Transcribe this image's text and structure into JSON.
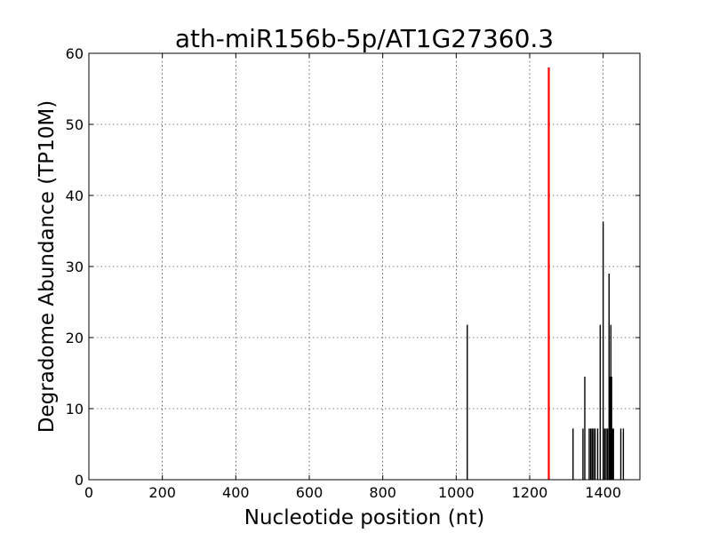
{
  "chart_data": {
    "type": "bar",
    "title": "ath-miR156b-5p/AT1G27360.3",
    "xlabel": "Nucleotide position (nt)",
    "ylabel": "Degradome Abundance (TP10M)",
    "xlim": [
      0,
      1500
    ],
    "ylim": [
      0,
      60
    ],
    "xticks": [
      0,
      200,
      400,
      600,
      800,
      1000,
      1200,
      1400
    ],
    "yticks": [
      0,
      10,
      20,
      30,
      40,
      50,
      60
    ],
    "grid": true,
    "colors": {
      "default": "#000000",
      "highlight": "#ff0000"
    },
    "highlight": {
      "x": 1252,
      "y": 58
    },
    "series": [
      {
        "values": [
          {
            "x": 1030,
            "y": 21.8
          },
          {
            "x": 1252,
            "y": 21.8
          },
          {
            "x": 1318,
            "y": 7.2
          },
          {
            "x": 1345,
            "y": 7.2
          },
          {
            "x": 1350,
            "y": 14.5
          },
          {
            "x": 1362,
            "y": 7.2
          },
          {
            "x": 1366,
            "y": 7.2
          },
          {
            "x": 1370,
            "y": 7.2
          },
          {
            "x": 1374,
            "y": 7.2
          },
          {
            "x": 1378,
            "y": 7.2
          },
          {
            "x": 1385,
            "y": 7.2
          },
          {
            "x": 1392,
            "y": 21.8
          },
          {
            "x": 1400,
            "y": 36.3
          },
          {
            "x": 1404,
            "y": 7.2
          },
          {
            "x": 1408,
            "y": 7.2
          },
          {
            "x": 1412,
            "y": 7.2
          },
          {
            "x": 1416,
            "y": 29.0
          },
          {
            "x": 1419,
            "y": 14.5
          },
          {
            "x": 1421,
            "y": 21.8
          },
          {
            "x": 1423,
            "y": 14.5
          },
          {
            "x": 1425,
            "y": 7.2
          },
          {
            "x": 1428,
            "y": 7.2
          },
          {
            "x": 1448,
            "y": 7.2
          },
          {
            "x": 1455,
            "y": 7.2
          }
        ]
      }
    ]
  }
}
